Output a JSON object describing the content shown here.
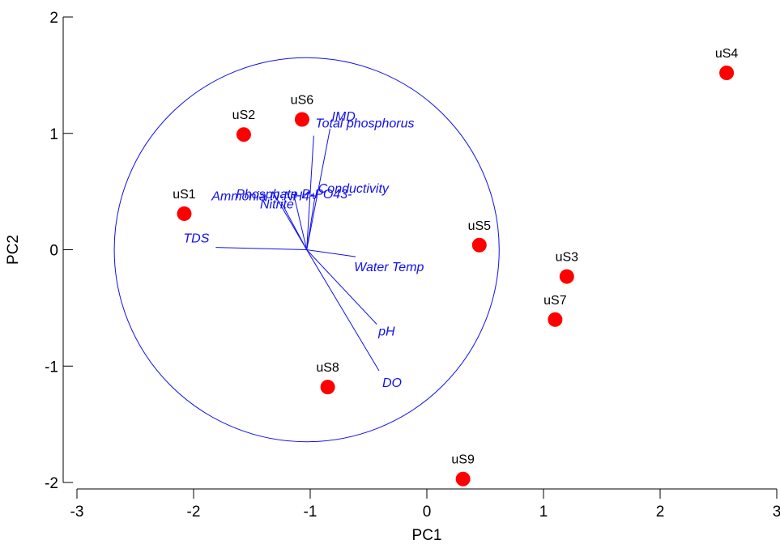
{
  "chart_data": {
    "type": "scatter",
    "xlabel": "PC1",
    "ylabel": "PC2",
    "xlim": [
      -3,
      3
    ],
    "ylim": [
      -2,
      2
    ],
    "x_ticks": [
      -3,
      -2,
      -1,
      0,
      1,
      2,
      3
    ],
    "y_ticks": [
      -2,
      -1,
      0,
      1,
      2
    ],
    "grid": false,
    "point_color": "#ff0000",
    "vector_color": "#1010ee",
    "points": [
      {
        "label": "uS1",
        "x": -2.08,
        "y": 0.31
      },
      {
        "label": "uS2",
        "x": -1.57,
        "y": 0.99
      },
      {
        "label": "uS3",
        "x": 1.2,
        "y": -0.23
      },
      {
        "label": "uS4",
        "x": 2.57,
        "y": 1.52
      },
      {
        "label": "uS5",
        "x": 0.45,
        "y": 0.04
      },
      {
        "label": "uS6",
        "x": -1.07,
        "y": 1.12
      },
      {
        "label": "uS7",
        "x": 1.1,
        "y": -0.6
      },
      {
        "label": "uS8",
        "x": -0.85,
        "y": -1.18
      },
      {
        "label": "uS9",
        "x": 0.31,
        "y": -1.97
      }
    ],
    "circle": {
      "center": [
        -1.03,
        0.0
      ],
      "radius": 1.65
    },
    "vectors": [
      {
        "label": "IMD",
        "x": -0.83,
        "y": 1.04
      },
      {
        "label": "Total phosphorus",
        "x": -0.97,
        "y": 0.98
      },
      {
        "label": "Ammonia N-NH4+",
        "x": -1.31,
        "y": 0.48
      },
      {
        "label": "Phosphate P-PO43-",
        "x": -1.14,
        "y": 0.47
      },
      {
        "label": "Nitrite",
        "x": -1.25,
        "y": 0.41
      },
      {
        "label": "Conductivity",
        "x": -0.96,
        "y": 0.45
      },
      {
        "label": "TDS",
        "x": -1.81,
        "y": 0.02
      },
      {
        "label": "Water Temp",
        "x": -0.61,
        "y": -0.06
      },
      {
        "label": "pH",
        "x": -0.43,
        "y": -0.64
      },
      {
        "label": "DO",
        "x": -0.41,
        "y": -1.04
      }
    ]
  }
}
